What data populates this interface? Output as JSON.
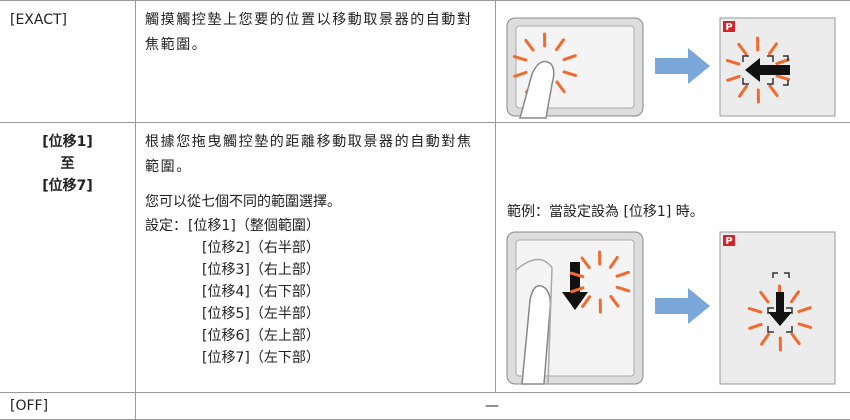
{
  "table": {
    "rows": [
      {
        "label": "[EXACT]",
        "description": "觸摸觸控墊上您要的位置以移動取景器的自動對焦範圍。"
      },
      {
        "label": [
          "[位移1]",
          "至",
          "[位移7]"
        ],
        "description": "根據您拖曳觸控墊的距離移動取景器的自動對焦範圍。",
        "note": "您可以從七個不同的範圍選擇。",
        "settings_label": "設定：",
        "settings": [
          "[位移1]（整個範圍）",
          "[位移2]（右半部）",
          "[位移3]（右上部）",
          "[位移4]（右下部）",
          "[位移5]（左半部）",
          "[位移6]（左上部）",
          "[位移7]（左下部）"
        ],
        "example": "範例：當設定設為 [位移1] 時。"
      },
      {
        "label": "[OFF]",
        "description": "—"
      }
    ]
  },
  "images": [
    {
      "mode": "P"
    },
    {
      "mode": "P"
    }
  ]
}
